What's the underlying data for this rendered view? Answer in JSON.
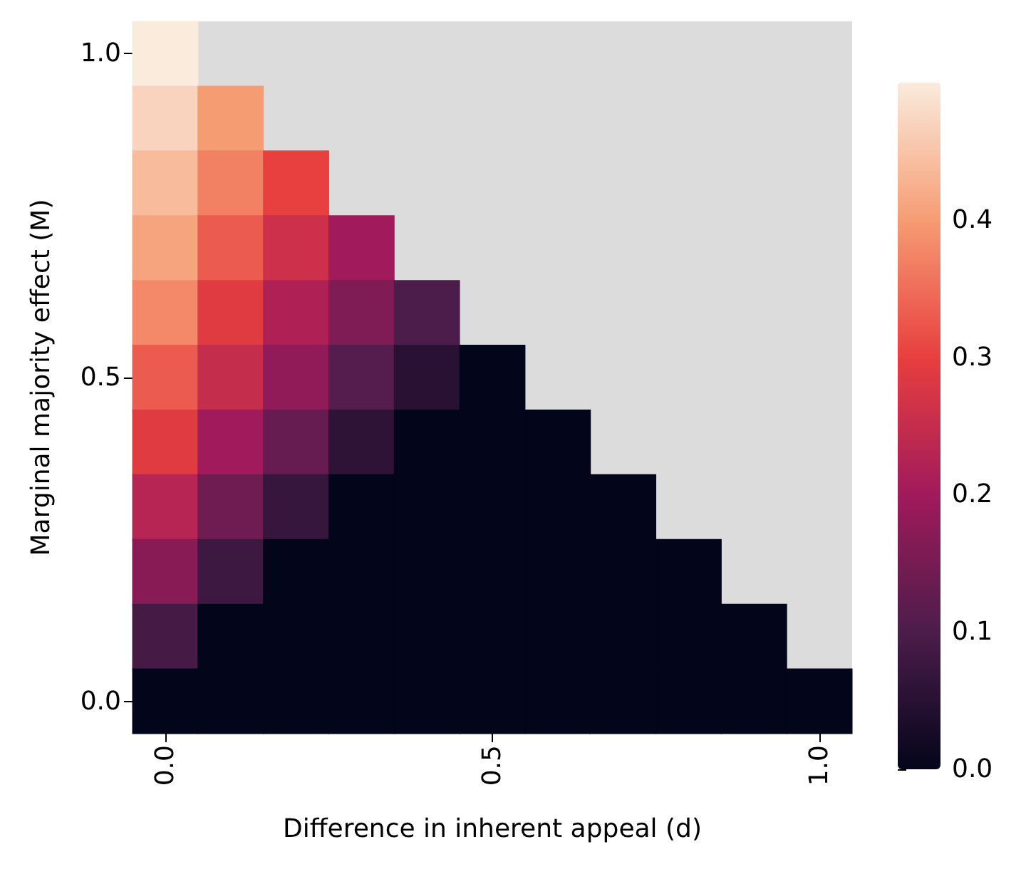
{
  "chart_data": {
    "type": "heatmap",
    "xlabel": "Difference in inherent appeal (d)",
    "ylabel": "Marginal majority effect (M)",
    "categories": [
      "0.0",
      null,
      null,
      null,
      null,
      "0.5",
      null,
      null,
      null,
      null,
      "1.0"
    ],
    "y_categories": [
      "1.0",
      null,
      null,
      null,
      null,
      "0.5",
      null,
      null,
      null,
      null,
      "0.0"
    ],
    "cells": [
      [
        0.5,
        null,
        null,
        null,
        null,
        null,
        null,
        null,
        null,
        null,
        null
      ],
      [
        0.47,
        0.4,
        null,
        null,
        null,
        null,
        null,
        null,
        null,
        null,
        null
      ],
      [
        0.44,
        0.37,
        0.3,
        null,
        null,
        null,
        null,
        null,
        null,
        null,
        null
      ],
      [
        0.41,
        0.33,
        0.26,
        0.2,
        null,
        null,
        null,
        null,
        null,
        null,
        null
      ],
      [
        0.38,
        0.29,
        0.22,
        0.16,
        0.1,
        null,
        null,
        null,
        null,
        null,
        null
      ],
      [
        0.33,
        0.25,
        0.18,
        0.11,
        0.05,
        0,
        null,
        null,
        null,
        null,
        null
      ],
      [
        0.29,
        0.2,
        0.13,
        0.06,
        0,
        0,
        0,
        null,
        null,
        null,
        null
      ],
      [
        0.23,
        0.14,
        0.07,
        0,
        0,
        0,
        0,
        0,
        null,
        null,
        null
      ],
      [
        0.17,
        0.08,
        0,
        0,
        0,
        0,
        0,
        0,
        0,
        null,
        null
      ],
      [
        0.09,
        0,
        0,
        0,
        0,
        0,
        0,
        0,
        0,
        0,
        null
      ],
      [
        0,
        0,
        0,
        0,
        0,
        0,
        0,
        0,
        0,
        0,
        0
      ]
    ],
    "clim": [
      0,
      0.5
    ],
    "cticks": [
      {
        "value": 0,
        "label": "0.0"
      },
      {
        "value": 0.1,
        "label": "0.1"
      },
      {
        "value": 0.2,
        "label": "0.2"
      },
      {
        "value": 0.3,
        "label": "0.3"
      },
      {
        "value": 0.4,
        "label": "0.4"
      }
    ]
  }
}
